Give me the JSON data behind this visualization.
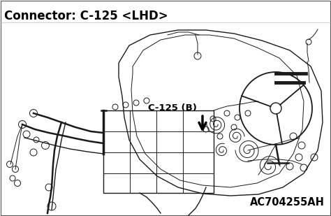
{
  "title": "Connector: C-125 <LHD>",
  "label_connector": "C-125 (B)",
  "label_code": "AC704255AH",
  "bg_color": "#ffffff",
  "line_color": "#1a1a1a",
  "title_fontsize": 12,
  "label_fontsize": 9.5,
  "code_fontsize": 10.5,
  "fig_width": 4.74,
  "fig_height": 3.09,
  "dpi": 100
}
